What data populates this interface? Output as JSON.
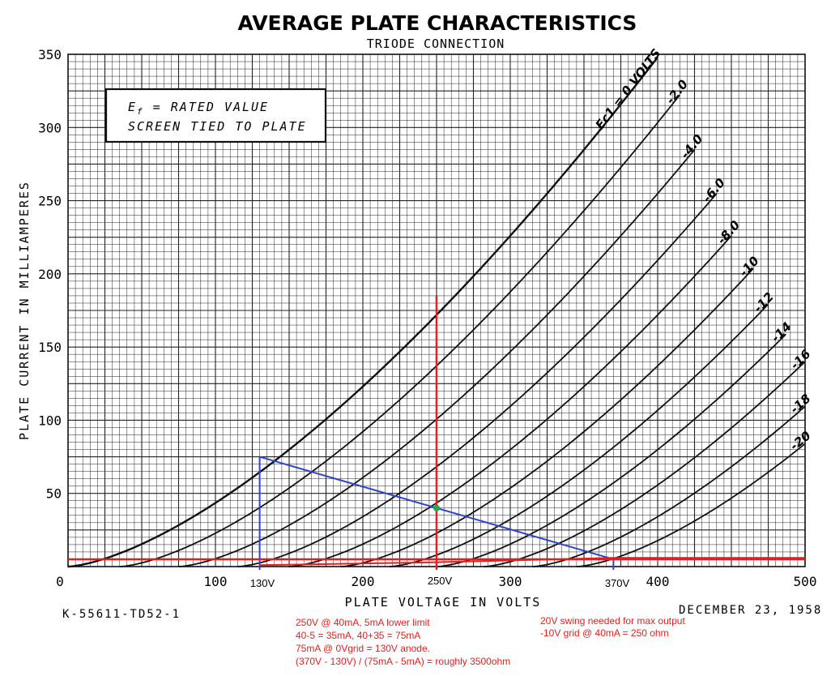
{
  "chart_data": {
    "type": "line",
    "title": "AVERAGE PLATE CHARACTERISTICS",
    "subtitle": "TRIODE CONNECTION",
    "xlabel": "PLATE VOLTAGE IN VOLTS",
    "ylabel": "PLATE CURRENT IN MILLIAMPERES",
    "xlim": [
      0,
      500
    ],
    "ylim": [
      0,
      350
    ],
    "x_ticks": [
      "0",
      "100",
      "200",
      "300",
      "400",
      "500"
    ],
    "y_ticks": [
      "350",
      "300",
      "250",
      "200",
      "150",
      "100",
      "50"
    ],
    "grid": true,
    "series_parameter": "Ec1",
    "series": [
      {
        "name": "Ec1 = 0 VOLTS",
        "label": "Ec1 = 0 VOLTS",
        "x0": 0,
        "x_end": 400
      },
      {
        "name": "-2.0",
        "label": "-2.0",
        "x0": 35,
        "x_end": 415
      },
      {
        "name": "-4.0",
        "label": "-4.0",
        "x0": 75,
        "x_end": 425
      },
      {
        "name": "-6.0",
        "label": "-6.0",
        "x0": 115,
        "x_end": 440
      },
      {
        "name": "-8.0",
        "label": "-8.0",
        "x0": 150,
        "x_end": 450
      },
      {
        "name": "-10",
        "label": "-10",
        "x0": 185,
        "x_end": 465
      },
      {
        "name": "-12",
        "label": "-12",
        "x0": 218,
        "x_end": 475
      },
      {
        "name": "-14",
        "label": "-14",
        "x0": 250,
        "x_end": 487
      },
      {
        "name": "-16",
        "label": "-16",
        "x0": 282,
        "x_end": 500
      },
      {
        "name": "-18",
        "label": "-18",
        "x0": 315,
        "x_end": 500
      },
      {
        "name": "-20",
        "label": "-20",
        "x0": 345,
        "x_end": 500
      }
    ],
    "curve_model": {
      "k_ma_per_v15": 0.0435,
      "exponent": 1.5
    },
    "annotations": {
      "box_line1": "Ef = RATED VALUE",
      "box_line2": "SCREEN TIED TO PLATE",
      "ef_symbol": "E",
      "ef_subscript": "f",
      "ef_rest": " = RATED VALUE",
      "drawing_number": "K-55611-TD52-1",
      "date": "DECEMBER 23, 1958"
    },
    "overlay": {
      "load_line": {
        "points": [
          [
            130,
            75
          ],
          [
            370,
            5
          ]
        ],
        "color": "#3344cc"
      },
      "vertical_130": {
        "x": 130,
        "y_top": 75,
        "color": "#3344cc"
      },
      "vertical_370": {
        "x": 370,
        "y_top": 5,
        "color": "#3344cc"
      },
      "red_vertical": {
        "x": 250,
        "y_top": 185,
        "color": "#e02020"
      },
      "red_horizontal": {
        "y": 5,
        "color": "#e02020"
      },
      "red_curve": {
        "points": [
          [
            130,
            1
          ],
          [
            250,
            3
          ],
          [
            370,
            6
          ],
          [
            500,
            6
          ]
        ],
        "color": "#e02020"
      },
      "operating_point": {
        "x": 250,
        "y": 40,
        "color": "#22aa44"
      },
      "marker_labels": [
        "130V",
        "250V",
        "370V"
      ],
      "notes_left": [
        "250V @ 40mA, 5mA lower limit",
        "40-5 = 35mA, 40+35 = 75mA",
        "75mA @ 0Vgrid = 130V anode.",
        "(370V - 130V) / (75mA - 5mA) = roughly 3500ohm"
      ],
      "notes_right": [
        "20V swing needed for max output",
        "-10V grid @ 40mA = 250 ohm"
      ],
      "note_color": "#e02020"
    }
  }
}
